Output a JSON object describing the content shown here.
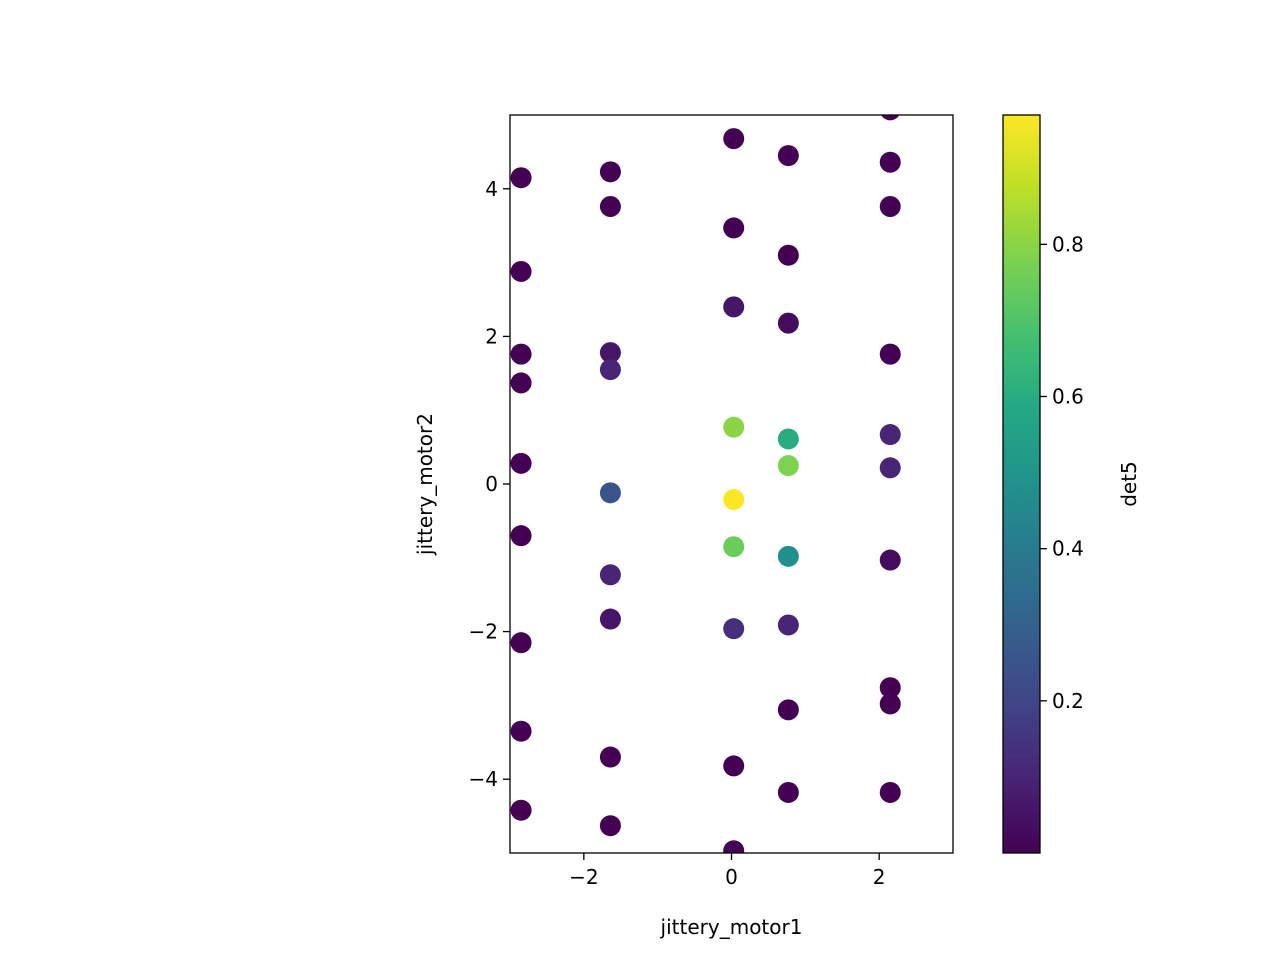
{
  "chart_data": {
    "type": "scatter",
    "xlabel": "jittery_motor1",
    "ylabel": "jittery_motor2",
    "xlim": [
      -3,
      3
    ],
    "ylim": [
      -5,
      5
    ],
    "x_ticks": [
      -2,
      0,
      2
    ],
    "y_ticks": [
      -4,
      -2,
      0,
      2,
      4
    ],
    "x_tick_labels": [
      "−2",
      "0",
      "2"
    ],
    "y_tick_labels": [
      "−4",
      "−2",
      "0",
      "2",
      "4"
    ],
    "grid": false,
    "colormap": "viridis",
    "colorbar": {
      "label": "det5",
      "range": [
        0.0,
        0.97
      ],
      "ticks": [
        0.2,
        0.4,
        0.6,
        0.8
      ],
      "tick_labels": [
        "0.2",
        "0.4",
        "0.6",
        "0.8"
      ]
    },
    "points": [
      {
        "x": -2.85,
        "y": 4.15,
        "v": 0.0
      },
      {
        "x": -2.85,
        "y": 2.88,
        "v": 0.0
      },
      {
        "x": -2.85,
        "y": 1.76,
        "v": 0.0
      },
      {
        "x": -2.85,
        "y": 1.37,
        "v": 0.0
      },
      {
        "x": -2.85,
        "y": 0.28,
        "v": 0.0
      },
      {
        "x": -2.85,
        "y": -0.7,
        "v": 0.0
      },
      {
        "x": -2.85,
        "y": -2.15,
        "v": 0.0
      },
      {
        "x": -2.85,
        "y": -3.35,
        "v": 0.0
      },
      {
        "x": -2.85,
        "y": -4.42,
        "v": 0.0
      },
      {
        "x": -1.64,
        "y": 4.23,
        "v": 0.0
      },
      {
        "x": -1.64,
        "y": 3.76,
        "v": 0.0
      },
      {
        "x": -1.64,
        "y": 1.78,
        "v": 0.06
      },
      {
        "x": -1.64,
        "y": 1.55,
        "v": 0.1
      },
      {
        "x": -1.64,
        "y": -0.12,
        "v": 0.25
      },
      {
        "x": -1.64,
        "y": -1.23,
        "v": 0.1
      },
      {
        "x": -1.64,
        "y": -1.83,
        "v": 0.06
      },
      {
        "x": -1.64,
        "y": -3.7,
        "v": 0.0
      },
      {
        "x": -1.64,
        "y": -4.63,
        "v": 0.0
      },
      {
        "x": 0.03,
        "y": 4.68,
        "v": 0.0
      },
      {
        "x": 0.03,
        "y": 3.47,
        "v": 0.0
      },
      {
        "x": 0.03,
        "y": 2.4,
        "v": 0.06
      },
      {
        "x": 0.03,
        "y": 0.77,
        "v": 0.8
      },
      {
        "x": 0.03,
        "y": -0.21,
        "v": 0.97
      },
      {
        "x": 0.03,
        "y": -0.85,
        "v": 0.75
      },
      {
        "x": 0.03,
        "y": -1.96,
        "v": 0.13
      },
      {
        "x": 0.03,
        "y": -3.82,
        "v": 0.0
      },
      {
        "x": 0.03,
        "y": -4.97,
        "v": 0.0
      },
      {
        "x": 0.77,
        "y": 4.45,
        "v": 0.0
      },
      {
        "x": 0.77,
        "y": 3.1,
        "v": 0.0
      },
      {
        "x": 0.77,
        "y": 2.18,
        "v": 0.03
      },
      {
        "x": 0.77,
        "y": 0.61,
        "v": 0.6
      },
      {
        "x": 0.77,
        "y": 0.25,
        "v": 0.78
      },
      {
        "x": 0.77,
        "y": -0.98,
        "v": 0.48
      },
      {
        "x": 0.77,
        "y": -1.91,
        "v": 0.1
      },
      {
        "x": 0.77,
        "y": -3.06,
        "v": 0.0
      },
      {
        "x": 0.77,
        "y": -4.18,
        "v": 0.0
      },
      {
        "x": 2.15,
        "y": 5.07,
        "v": 0.0
      },
      {
        "x": 2.15,
        "y": 4.36,
        "v": 0.0
      },
      {
        "x": 2.15,
        "y": 3.76,
        "v": 0.0
      },
      {
        "x": 2.15,
        "y": 1.76,
        "v": 0.0
      },
      {
        "x": 2.15,
        "y": 0.67,
        "v": 0.1
      },
      {
        "x": 2.15,
        "y": 0.22,
        "v": 0.1
      },
      {
        "x": 2.15,
        "y": -1.03,
        "v": 0.03
      },
      {
        "x": 2.15,
        "y": -2.76,
        "v": 0.0
      },
      {
        "x": 2.15,
        "y": -2.98,
        "v": 0.0
      },
      {
        "x": 2.15,
        "y": -4.18,
        "v": 0.0
      }
    ]
  }
}
